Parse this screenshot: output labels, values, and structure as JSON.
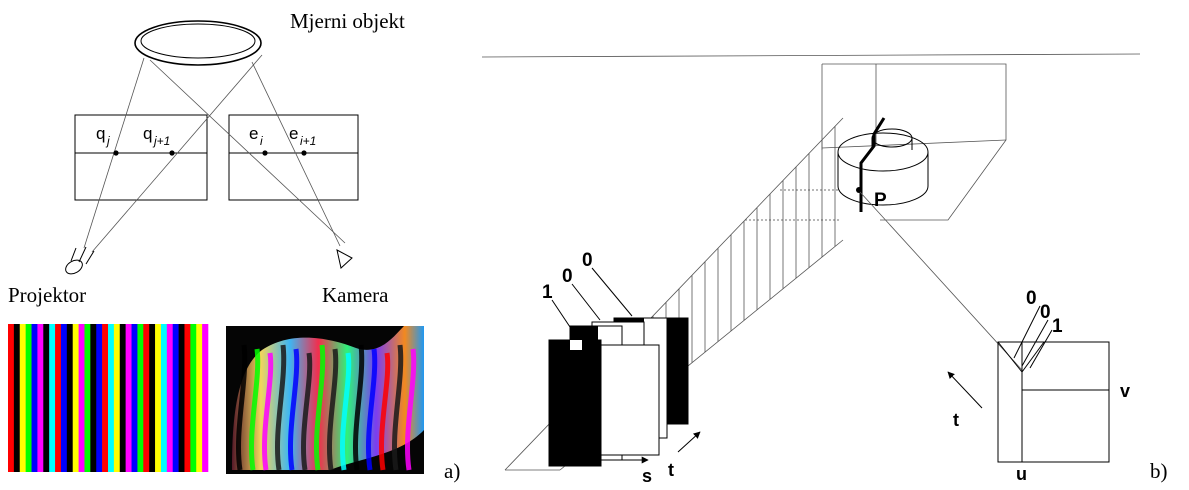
{
  "left_panel": {
    "object_label": "Mjerni objekt",
    "points": {
      "q1": "q",
      "q1_sub": "j",
      "q2": "q",
      "q2_sub": "j+1",
      "e1": "e",
      "e1_sub": "i",
      "e2": "e",
      "e2_sub": "i+1"
    },
    "projector_label": "Projektor",
    "camera_label": "Kamera",
    "stripe_colors": [
      "#ff0000",
      "#000000",
      "#ffff00",
      "#00ff00",
      "#0000ff",
      "#ff00ff",
      "#000000",
      "#00ffff",
      "#ff0000",
      "#0000ff",
      "#000000",
      "#ffff00",
      "#ff00ff",
      "#00ff00",
      "#000000",
      "#0000ff",
      "#ff0000",
      "#00ffff",
      "#ffff00",
      "#000000",
      "#ff00ff",
      "#0000ff",
      "#00ff00",
      "#ff0000",
      "#000000",
      "#ffff00",
      "#00ffff",
      "#ff00ff",
      "#0000ff",
      "#000000",
      "#ff0000",
      "#00ff00",
      "#ffff00",
      "#ff00ff"
    ],
    "panel_letter": "a)"
  },
  "right_panel": {
    "point_label": "P",
    "pattern_codes": [
      "1",
      "0",
      "0"
    ],
    "camera_codes": [
      "0",
      "0",
      "1"
    ],
    "axis_s": "s",
    "axis_t": "t",
    "axis_u": "u",
    "axis_v": "v",
    "axis_t_camera": "t",
    "panel_letter": "b)"
  }
}
